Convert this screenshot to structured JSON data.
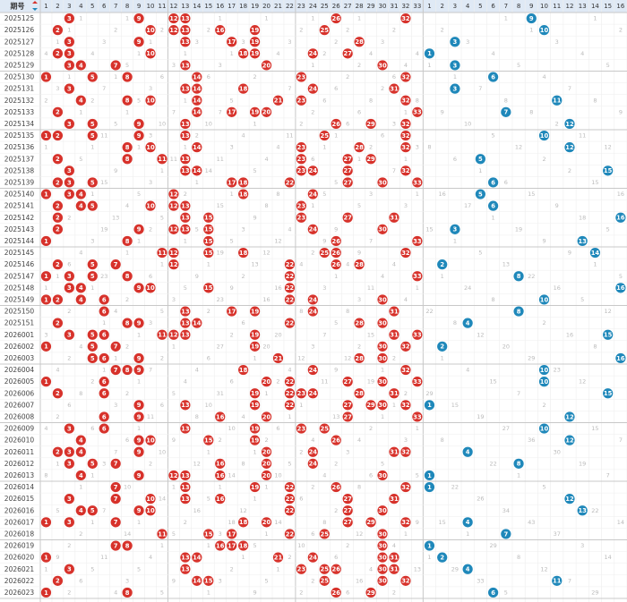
{
  "chart_data": {
    "type": "table",
    "title": "",
    "header": {
      "period_label": "期号",
      "red_zone": [
        "1",
        "2",
        "3",
        "4",
        "5",
        "6",
        "7",
        "8",
        "9",
        "10",
        "11",
        "12",
        "13",
        "14",
        "15",
        "16",
        "17",
        "18",
        "19",
        "20",
        "21",
        "22",
        "23",
        "24",
        "25",
        "26",
        "27",
        "28",
        "29",
        "30",
        "31",
        "32",
        "33"
      ],
      "blue_zone": [
        "1",
        "2",
        "3",
        "4",
        "5",
        "6",
        "7",
        "8",
        "9",
        "10",
        "11",
        "12",
        "13",
        "14",
        "15",
        "16"
      ]
    },
    "rows": [
      {
        "period": "2025125",
        "red": [
          3,
          9,
          12,
          13,
          26,
          32
        ],
        "blue": 9
      },
      {
        "period": "2025126",
        "red": [
          2,
          10,
          12,
          13,
          16,
          19,
          25
        ],
        "blue": 10
      },
      {
        "period": "2025127",
        "red": [
          3,
          9,
          13,
          17,
          19,
          28
        ],
        "blue": 3
      },
      {
        "period": "2025128",
        "red": [
          2,
          3,
          10,
          18,
          19,
          24,
          27
        ],
        "blue": 1
      },
      {
        "period": "2025129",
        "red": [
          3,
          4,
          7,
          13,
          20,
          30
        ],
        "blue": 3
      },
      {
        "period": "2025130",
        "red": [
          1,
          5,
          8,
          14,
          23,
          32
        ],
        "blue": 6
      },
      {
        "period": "2025131",
        "red": [
          3,
          13,
          14,
          18,
          24,
          31
        ],
        "blue": 3
      },
      {
        "period": "2025132",
        "red": [
          4,
          8,
          10,
          14,
          21,
          23,
          32
        ],
        "blue": 11
      },
      {
        "period": "2025133",
        "red": [
          2,
          14,
          17,
          19,
          20,
          33
        ],
        "blue": 7
      },
      {
        "period": "2025134",
        "red": [
          3,
          5,
          9,
          13,
          26,
          29,
          32
        ],
        "blue": 12
      },
      {
        "period": "2025135",
        "red": [
          1,
          2,
          5,
          9,
          13,
          25,
          32
        ],
        "blue": 10
      },
      {
        "period": "2025136",
        "red": [
          8,
          10,
          14,
          23,
          28,
          32
        ],
        "blue": 12
      },
      {
        "period": "2025137",
        "red": [
          2,
          8,
          11,
          13,
          23,
          27,
          29
        ],
        "blue": 5
      },
      {
        "period": "2025138",
        "red": [
          3,
          13,
          14,
          23,
          24,
          27,
          32
        ],
        "blue": 15
      },
      {
        "period": "2025139",
        "red": [
          2,
          3,
          5,
          17,
          18,
          22,
          27,
          30,
          33
        ],
        "blue": 6
      },
      {
        "period": "2025140",
        "red": [
          1,
          3,
          4,
          12,
          18,
          24
        ],
        "blue": 5
      },
      {
        "period": "2025141",
        "red": [
          2,
          4,
          5,
          10,
          12,
          13,
          23
        ],
        "blue": 6
      },
      {
        "period": "2025142",
        "red": [
          2,
          13,
          15,
          23,
          27,
          31
        ],
        "blue": 16
      },
      {
        "period": "2025143",
        "red": [
          2,
          9,
          12,
          13,
          15,
          24,
          30
        ],
        "blue": 3
      },
      {
        "period": "2025144",
        "red": [
          1,
          8,
          15,
          26,
          33
        ],
        "blue": 13
      },
      {
        "period": "2025145",
        "red": [
          11,
          12,
          15,
          18,
          25,
          26,
          32
        ],
        "blue": 14
      },
      {
        "period": "2025146",
        "red": [
          2,
          5,
          7,
          12,
          22,
          26,
          28
        ],
        "blue": 2
      },
      {
        "period": "2025147",
        "red": [
          1,
          3,
          5,
          8,
          22,
          33
        ],
        "blue": 8
      },
      {
        "period": "2025148",
        "red": [
          3,
          4,
          9,
          10,
          15,
          22
        ],
        "blue": 16
      },
      {
        "period": "2025149",
        "red": [
          1,
          2,
          4,
          6,
          22,
          24,
          30
        ],
        "blue": 10
      },
      {
        "period": "2025150",
        "red": [
          6,
          13,
          17,
          19,
          24,
          31
        ],
        "blue": 8
      },
      {
        "period": "2025151",
        "red": [
          2,
          8,
          9,
          13,
          14,
          22,
          28,
          30
        ],
        "blue": 4
      },
      {
        "period": "2026001",
        "red": [
          3,
          5,
          6,
          11,
          12,
          13,
          19,
          31,
          33
        ],
        "blue": 15
      },
      {
        "period": "2026002",
        "red": [
          1,
          5,
          7,
          19,
          30,
          32
        ],
        "blue": 2
      },
      {
        "period": "2026003",
        "red": [
          5,
          6,
          9,
          21,
          28,
          30
        ],
        "blue": 16
      },
      {
        "period": "2026004",
        "red": [
          7,
          8,
          9,
          18,
          24,
          32
        ],
        "blue": 10
      },
      {
        "period": "2026005",
        "red": [
          1,
          6,
          20,
          22,
          27,
          30,
          33
        ],
        "blue": 10
      },
      {
        "period": "2026006",
        "red": [
          2,
          6,
          19,
          22,
          23,
          24,
          28,
          31
        ],
        "blue": 15
      },
      {
        "period": "2026007",
        "red": [
          9,
          13,
          19,
          22,
          27,
          29,
          30,
          32
        ],
        "blue": 1
      },
      {
        "period": "2026008",
        "red": [
          6,
          9,
          16,
          20,
          27,
          33
        ],
        "blue": 12
      },
      {
        "period": "2026009",
        "red": [
          3,
          6,
          13,
          19,
          23,
          25
        ],
        "blue": 10
      },
      {
        "period": "2026010",
        "red": [
          4,
          9,
          10,
          15,
          19,
          26
        ],
        "blue": 12
      },
      {
        "period": "2026011",
        "red": [
          2,
          3,
          4,
          9,
          20,
          24,
          31,
          32
        ],
        "blue": 4
      },
      {
        "period": "2026012",
        "red": [
          3,
          5,
          7,
          16,
          20,
          24
        ],
        "blue": 8
      },
      {
        "period": "2026013",
        "red": [
          4,
          9,
          12,
          13,
          16,
          20,
          30
        ],
        "blue": 1
      },
      {
        "period": "2026014",
        "red": [
          7,
          13,
          19,
          22,
          26,
          32
        ],
        "blue": 1
      },
      {
        "period": "2026015",
        "red": [
          3,
          7,
          10,
          13,
          16,
          22,
          27,
          31
        ],
        "blue": 12
      },
      {
        "period": "2026016",
        "red": [
          4,
          5,
          9,
          10,
          22,
          27,
          30
        ],
        "blue": 13
      },
      {
        "period": "2026017",
        "red": [
          1,
          3,
          7,
          18,
          20,
          27,
          29,
          32
        ],
        "blue": 4
      },
      {
        "period": "2026018",
        "red": [
          11,
          15,
          17,
          22,
          25,
          30
        ],
        "blue": 7
      },
      {
        "period": "2026019",
        "red": [
          7,
          8,
          16,
          17,
          18,
          30
        ],
        "blue": 1
      },
      {
        "period": "2026020",
        "red": [
          1,
          13,
          14,
          21,
          24,
          30,
          31
        ],
        "blue": 2
      },
      {
        "period": "2026021",
        "red": [
          3,
          13,
          23,
          25,
          26,
          30,
          31
        ],
        "blue": 4
      },
      {
        "period": "2026022",
        "red": [
          2,
          14,
          15,
          25,
          30,
          32
        ],
        "blue": 11
      },
      {
        "period": "2026023",
        "red": [
          1,
          8,
          26,
          29
        ],
        "blue": 6
      }
    ]
  },
  "colors": {
    "red_ball": "#d7322b",
    "blue_ball": "#1f88ba",
    "header_bg": "#dfe9f5",
    "grid_line": "#eeeeee",
    "group_line": "#c8c8c8",
    "miss_text": "#bbbbbb",
    "period_text": "#444444"
  }
}
